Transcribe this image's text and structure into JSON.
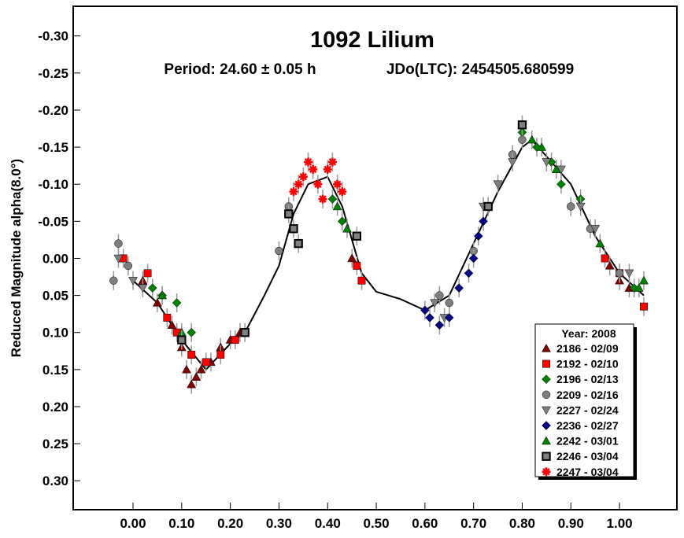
{
  "chart_data": {
    "type": "scatter",
    "title": "1092 Lilium",
    "subtitle_period": "Period: 24.60 ± 0.05 h",
    "subtitle_epoch": "JDo(LTC): 2454505.680599",
    "xlabel": "",
    "ylabel": "Reduced Magnitude alpha(8.0°)",
    "xlim": [
      -0.123,
      1.118
    ],
    "ylim": [
      -0.34,
      0.339
    ],
    "y_inverted": true,
    "grid": false,
    "x_ticks": [
      0.0,
      0.1,
      0.2,
      0.3,
      0.4,
      0.5,
      0.6,
      0.7,
      0.8,
      0.9,
      1.0
    ],
    "x_tick_labels": [
      "0.00",
      "0.10",
      "0.20",
      "0.30",
      "0.40",
      "0.50",
      "0.60",
      "0.70",
      "0.80",
      "0.90",
      "1.00"
    ],
    "y_ticks": [
      -0.3,
      -0.25,
      -0.2,
      -0.15,
      -0.1,
      -0.05,
      0.0,
      0.05,
      0.1,
      0.15,
      0.2,
      0.25,
      0.3
    ],
    "y_tick_labels": [
      "-0.30",
      "-0.25",
      "-0.20",
      "-0.15",
      "-0.10",
      "-0.05",
      "0.00",
      "0.05",
      "0.10",
      "0.15",
      "0.20",
      "0.25",
      "0.30"
    ],
    "legend": {
      "placement": "bottom-right",
      "title": "Year: 2008"
    },
    "fit_curve": [
      [
        0.0,
        0.03
      ],
      [
        0.05,
        0.06
      ],
      [
        0.1,
        0.11
      ],
      [
        0.15,
        0.15
      ],
      [
        0.2,
        0.115
      ],
      [
        0.23,
        0.1
      ],
      [
        0.27,
        0.05
      ],
      [
        0.3,
        0.01
      ],
      [
        0.33,
        -0.06
      ],
      [
        0.36,
        -0.1
      ],
      [
        0.4,
        -0.11
      ],
      [
        0.43,
        -0.07
      ],
      [
        0.47,
        0.02
      ],
      [
        0.5,
        0.045
      ],
      [
        0.55,
        0.055
      ],
      [
        0.6,
        0.07
      ],
      [
        0.65,
        0.05
      ],
      [
        0.7,
        -0.02
      ],
      [
        0.75,
        -0.09
      ],
      [
        0.8,
        -0.15
      ],
      [
        0.82,
        -0.16
      ],
      [
        0.86,
        -0.13
      ],
      [
        0.9,
        -0.1
      ],
      [
        0.95,
        -0.03
      ],
      [
        1.0,
        0.02
      ],
      [
        1.05,
        0.05
      ]
    ],
    "series": [
      {
        "name": "2186 - 02/09",
        "marker": "triangle-up",
        "color": "#800000",
        "points": [
          [
            0.02,
            0.03
          ],
          [
            0.05,
            0.06
          ],
          [
            0.08,
            0.09
          ],
          [
            0.1,
            0.12
          ],
          [
            0.11,
            0.15
          ],
          [
            0.12,
            0.17
          ],
          [
            0.13,
            0.16
          ],
          [
            0.14,
            0.15
          ],
          [
            0.16,
            0.14
          ],
          [
            0.18,
            0.12
          ],
          [
            0.2,
            0.11
          ],
          [
            0.22,
            0.1
          ],
          [
            0.45,
            0.0
          ],
          [
            0.98,
            0.01
          ],
          [
            1.0,
            0.03
          ],
          [
            1.02,
            0.04
          ]
        ]
      },
      {
        "name": "2192 - 02/10",
        "marker": "square",
        "color": "#ff0000",
        "points": [
          [
            -0.02,
            0.0
          ],
          [
            0.03,
            0.02
          ],
          [
            0.07,
            0.08
          ],
          [
            0.09,
            0.1
          ],
          [
            0.12,
            0.13
          ],
          [
            0.15,
            0.14
          ],
          [
            0.18,
            0.13
          ],
          [
            0.21,
            0.11
          ],
          [
            0.46,
            0.01
          ],
          [
            0.47,
            0.03
          ],
          [
            0.97,
            0.0
          ],
          [
            1.0,
            0.02
          ],
          [
            1.05,
            0.065
          ]
        ]
      },
      {
        "name": "2196 - 02/13",
        "marker": "diamond",
        "color": "#008000",
        "points": [
          [
            0.04,
            0.04
          ],
          [
            0.06,
            0.05
          ],
          [
            0.09,
            0.06
          ],
          [
            0.12,
            0.1
          ],
          [
            0.41,
            -0.08
          ],
          [
            0.43,
            -0.05
          ],
          [
            0.8,
            -0.17
          ],
          [
            0.83,
            -0.15
          ],
          [
            0.86,
            -0.13
          ],
          [
            0.88,
            -0.1
          ],
          [
            0.92,
            -0.08
          ],
          [
            1.03,
            0.04
          ]
        ]
      },
      {
        "name": "2209 - 02/16",
        "marker": "circle",
        "color": "#808080",
        "points": [
          [
            -0.04,
            0.03
          ],
          [
            -0.03,
            -0.02
          ],
          [
            -0.01,
            0.01
          ],
          [
            0.3,
            -0.01
          ],
          [
            0.32,
            -0.07
          ],
          [
            0.63,
            0.05
          ],
          [
            0.65,
            0.06
          ],
          [
            0.7,
            -0.01
          ],
          [
            0.78,
            -0.14
          ],
          [
            0.8,
            -0.16
          ],
          [
            0.9,
            -0.07
          ],
          [
            0.94,
            -0.04
          ],
          [
            1.0,
            0.02
          ]
        ]
      },
      {
        "name": "2227 - 02/24",
        "marker": "triangle-down",
        "color": "#808080",
        "points": [
          [
            -0.03,
            0.0
          ],
          [
            0.0,
            0.03
          ],
          [
            0.02,
            0.04
          ],
          [
            0.62,
            0.06
          ],
          [
            0.64,
            0.08
          ],
          [
            0.72,
            -0.07
          ],
          [
            0.75,
            -0.1
          ],
          [
            0.78,
            -0.13
          ],
          [
            0.85,
            -0.13
          ],
          [
            0.88,
            -0.12
          ],
          [
            0.92,
            -0.07
          ],
          [
            0.95,
            -0.04
          ],
          [
            1.02,
            0.02
          ]
        ]
      },
      {
        "name": "2236 - 02/27",
        "marker": "diamond",
        "color": "#000080",
        "points": [
          [
            0.6,
            0.07
          ],
          [
            0.61,
            0.08
          ],
          [
            0.63,
            0.09
          ],
          [
            0.65,
            0.08
          ],
          [
            0.67,
            0.04
          ],
          [
            0.69,
            0.02
          ],
          [
            0.7,
            0.0
          ],
          [
            0.71,
            -0.03
          ],
          [
            0.72,
            -0.05
          ],
          [
            0.73,
            -0.07
          ]
        ]
      },
      {
        "name": "2242 - 03/01",
        "marker": "triangle-up",
        "color": "#008000",
        "points": [
          [
            0.06,
            0.05
          ],
          [
            0.1,
            0.1
          ],
          [
            0.42,
            -0.07
          ],
          [
            0.44,
            -0.04
          ],
          [
            0.82,
            -0.16
          ],
          [
            0.84,
            -0.15
          ],
          [
            0.87,
            -0.12
          ],
          [
            0.96,
            -0.02
          ],
          [
            1.04,
            0.04
          ],
          [
            1.05,
            0.03
          ]
        ]
      },
      {
        "name": "2246 - 03/04",
        "marker": "square-outlined",
        "color": "#808080",
        "points": [
          [
            0.1,
            0.11
          ],
          [
            0.23,
            0.1
          ],
          [
            0.32,
            -0.06
          ],
          [
            0.33,
            -0.04
          ],
          [
            0.34,
            -0.02
          ],
          [
            0.46,
            -0.03
          ],
          [
            0.73,
            -0.07
          ],
          [
            0.8,
            -0.18
          ]
        ]
      },
      {
        "name": "2247 - 03/04",
        "marker": "asterisk",
        "color": "#ff0000",
        "points": [
          [
            0.33,
            -0.09
          ],
          [
            0.34,
            -0.1
          ],
          [
            0.35,
            -0.11
          ],
          [
            0.36,
            -0.13
          ],
          [
            0.37,
            -0.12
          ],
          [
            0.38,
            -0.1
          ],
          [
            0.39,
            -0.08
          ],
          [
            0.4,
            -0.12
          ],
          [
            0.41,
            -0.13
          ],
          [
            0.42,
            -0.1
          ],
          [
            0.43,
            -0.09
          ]
        ]
      }
    ]
  }
}
